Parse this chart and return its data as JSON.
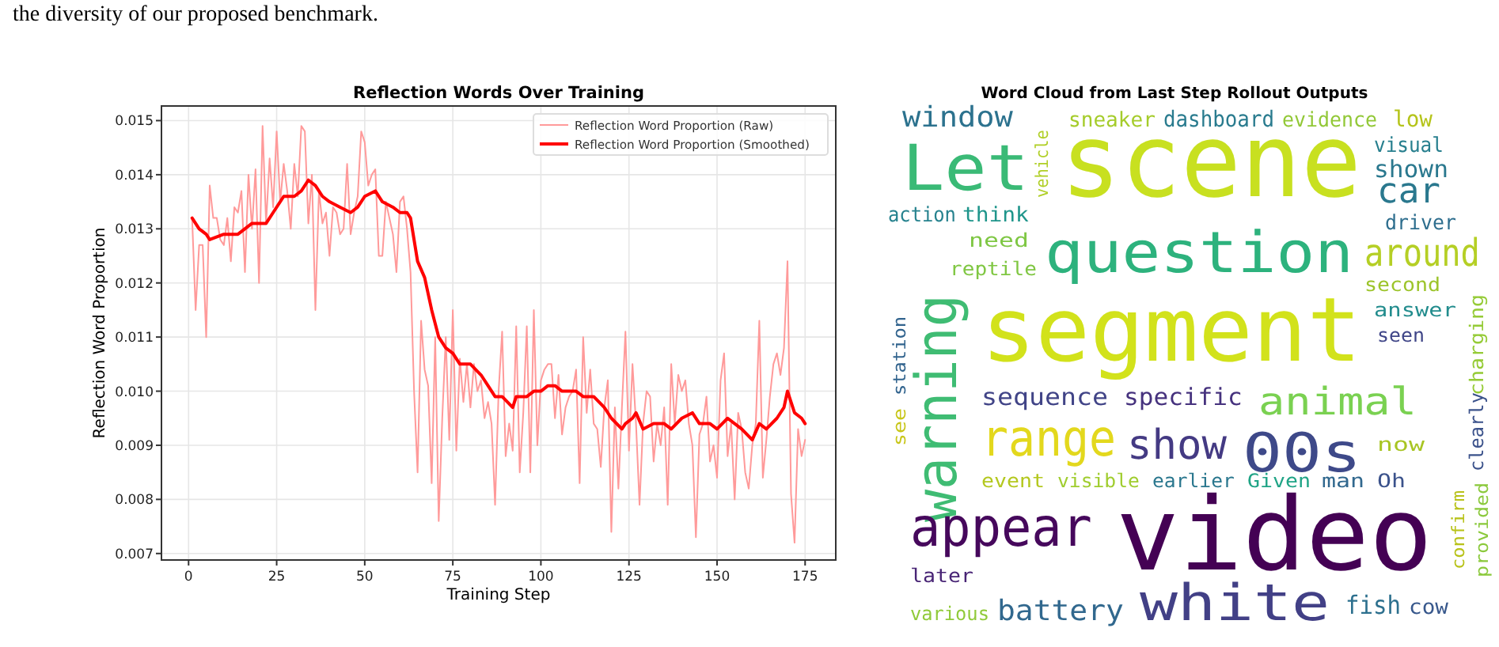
{
  "chart_data": [
    {
      "type": "line",
      "title": "Reflection Words Over Training",
      "xlabel": "Training Step",
      "ylabel": "Reflection Word Proportion",
      "annotations": [
        "the diversity of our proposed benchmark."
      ],
      "xlim": [
        -7.7,
        183.7
      ],
      "xticks": [
        0,
        25,
        50,
        75,
        100,
        125,
        150,
        175
      ],
      "ylim": [
        0.00688,
        0.01527
      ],
      "yticks": [
        0.007,
        0.008,
        0.009,
        {
          "value": 0.01,
          "label": "0.010"
        },
        0.011,
        0.012,
        0.013,
        0.014,
        0.015
      ],
      "grid": true,
      "legend": "top right",
      "marker": "none",
      "line_style": "solid",
      "series": [
        {
          "name": "Reflection Word Proportion (Raw)",
          "color": "#ff9a9a",
          "x": [
            1,
            2,
            3,
            4,
            5,
            6,
            7,
            8,
            9,
            10,
            11,
            12,
            13,
            14,
            15,
            16,
            17,
            18,
            19,
            20,
            21,
            22,
            23,
            24,
            25,
            26,
            27,
            28,
            29,
            30,
            31,
            32,
            33,
            34,
            35,
            36,
            37,
            38,
            39,
            40,
            41,
            42,
            43,
            44,
            45,
            46,
            47,
            48,
            49,
            50,
            51,
            52,
            53,
            54,
            55,
            56,
            57,
            58,
            59,
            60,
            61,
            62,
            63,
            64,
            65,
            66,
            67,
            68,
            69,
            70,
            71,
            72,
            73,
            74,
            75,
            76,
            77,
            78,
            79,
            80,
            81,
            82,
            83,
            84,
            85,
            86,
            87,
            88,
            89,
            90,
            91,
            92,
            93,
            94,
            95,
            96,
            97,
            98,
            99,
            100,
            101,
            102,
            103,
            104,
            105,
            106,
            107,
            108,
            109,
            110,
            111,
            112,
            113,
            114,
            115,
            116,
            117,
            118,
            119,
            120,
            121,
            122,
            123,
            124,
            125,
            126,
            127,
            128,
            129,
            130,
            131,
            132,
            133,
            134,
            135,
            136,
            137,
            138,
            139,
            140,
            141,
            142,
            143,
            144,
            145,
            146,
            147,
            148,
            149,
            150,
            151,
            152,
            153,
            154,
            155,
            156,
            157,
            158,
            159,
            160,
            161,
            162,
            163,
            164,
            165,
            166,
            167,
            168,
            169,
            170,
            171,
            172,
            173,
            174,
            175
          ],
          "values": [
            0.0132,
            0.0115,
            0.0127,
            0.0127,
            0.011,
            0.0138,
            0.0132,
            0.0132,
            0.0128,
            0.0127,
            0.0132,
            0.0124,
            0.0134,
            0.0133,
            0.0137,
            0.0122,
            0.014,
            0.013,
            0.0141,
            0.012,
            0.0149,
            0.0131,
            0.0143,
            0.0134,
            0.0148,
            0.0135,
            0.0142,
            0.0137,
            0.013,
            0.0142,
            0.0136,
            0.0149,
            0.0148,
            0.0131,
            0.014,
            0.0115,
            0.0137,
            0.0131,
            0.0133,
            0.0125,
            0.0134,
            0.0133,
            0.0129,
            0.013,
            0.0142,
            0.0129,
            0.0133,
            0.0136,
            0.0148,
            0.0146,
            0.0138,
            0.014,
            0.0141,
            0.0125,
            0.0125,
            0.0135,
            0.0132,
            0.0129,
            0.0122,
            0.0135,
            0.0136,
            0.013,
            0.0122,
            0.01,
            0.0085,
            0.0113,
            0.0104,
            0.0101,
            0.0083,
            0.011,
            0.0076,
            0.0095,
            0.011,
            0.0091,
            0.0115,
            0.0089,
            0.0106,
            0.0098,
            0.0105,
            0.0097,
            0.0105,
            0.01,
            0.0102,
            0.0095,
            0.0098,
            0.0094,
            0.0079,
            0.01,
            0.0111,
            0.0088,
            0.0094,
            0.0089,
            0.0112,
            0.0085,
            0.0096,
            0.0112,
            0.0085,
            0.0115,
            0.009,
            0.0102,
            0.0104,
            0.0105,
            0.0105,
            0.0095,
            0.0103,
            0.0092,
            0.0097,
            0.0099,
            0.01,
            0.0104,
            0.0083,
            0.011,
            0.0096,
            0.0104,
            0.0094,
            0.0093,
            0.0086,
            0.0097,
            0.0102,
            0.0074,
            0.0097,
            0.0082,
            0.0097,
            0.0111,
            0.0089,
            0.0105,
            0.0094,
            0.0079,
            0.0094,
            0.01,
            0.0099,
            0.0087,
            0.0094,
            0.009,
            0.0097,
            0.0079,
            0.0105,
            0.0094,
            0.0103,
            0.01,
            0.0102,
            0.0094,
            0.009,
            0.0073,
            0.0092,
            0.0094,
            0.0099,
            0.0087,
            0.009,
            0.0084,
            0.0102,
            0.0107,
            0.0088,
            0.0094,
            0.008,
            0.0096,
            0.0093,
            0.0085,
            0.0082,
            0.009,
            0.0094,
            0.0113,
            0.0084,
            0.0091,
            0.0099,
            0.0105,
            0.0107,
            0.0103,
            0.0108,
            0.0124,
            0.0081,
            0.0072,
            0.0093,
            0.0088,
            0.0091
          ]
        },
        {
          "name": "Reflection Word Proportion (Smoothed)",
          "color": "#ff0000",
          "x": [
            1,
            3,
            5,
            6,
            10,
            14,
            18,
            22,
            24,
            27,
            30,
            32,
            34,
            36,
            38,
            40,
            43,
            46,
            48,
            50,
            53,
            55,
            58,
            60,
            62,
            63,
            65,
            67,
            69,
            71,
            73,
            75,
            77,
            80,
            83,
            85,
            87,
            89,
            92,
            93,
            96,
            98,
            100,
            102,
            104,
            106,
            110,
            112,
            115,
            118,
            120,
            123,
            124,
            126,
            127,
            129,
            132,
            135,
            137,
            140,
            143,
            145,
            148,
            150,
            153,
            155,
            157,
            160,
            162,
            164,
            167,
            169,
            170,
            172,
            174,
            175
          ],
          "values": [
            0.0132,
            0.013,
            0.0129,
            0.0128,
            0.0129,
            0.0129,
            0.0131,
            0.0131,
            0.0133,
            0.0136,
            0.0136,
            0.0137,
            0.0139,
            0.0138,
            0.0136,
            0.0135,
            0.0134,
            0.0133,
            0.0134,
            0.0136,
            0.0137,
            0.0135,
            0.0134,
            0.0133,
            0.0133,
            0.0132,
            0.0124,
            0.0121,
            0.0115,
            0.011,
            0.0108,
            0.0107,
            0.0105,
            0.0105,
            0.0103,
            0.0101,
            0.0099,
            0.0099,
            0.0097,
            0.0099,
            0.0099,
            0.01,
            0.01,
            0.0101,
            0.0101,
            0.01,
            0.01,
            0.0099,
            0.0099,
            0.0097,
            0.0095,
            0.0093,
            0.0094,
            0.0095,
            0.0096,
            0.0093,
            0.0094,
            0.0094,
            0.0093,
            0.0095,
            0.0096,
            0.0094,
            0.0094,
            0.0093,
            0.0095,
            0.0094,
            0.0093,
            0.0091,
            0.0094,
            0.0093,
            0.0095,
            0.0097,
            0.01,
            0.0096,
            0.0095,
            0.0094
          ]
        }
      ]
    },
    {
      "type": "other",
      "title": "Word Cloud from Last Step Rollout Outputs",
      "annotations": [
        "scene",
        "segment",
        "video",
        "Let",
        "question",
        "warning",
        "range",
        "appear",
        "white",
        "00s",
        "show",
        "animal",
        "around",
        "car",
        "window",
        "sequence",
        "specific",
        "battery",
        "sneaker",
        "dashboard",
        "evidence",
        "low",
        "visual",
        "shown",
        "driver",
        "action",
        "think",
        "vehicle",
        "need",
        "reptile",
        "answer",
        "second",
        "charging",
        "seen",
        "station",
        "see",
        "event",
        "visible",
        "confirm",
        "now",
        "clearly",
        "provided",
        "earlier",
        "Given",
        "man",
        "Oh",
        "later",
        "fish",
        "various",
        "cow"
      ]
    }
  ]
}
